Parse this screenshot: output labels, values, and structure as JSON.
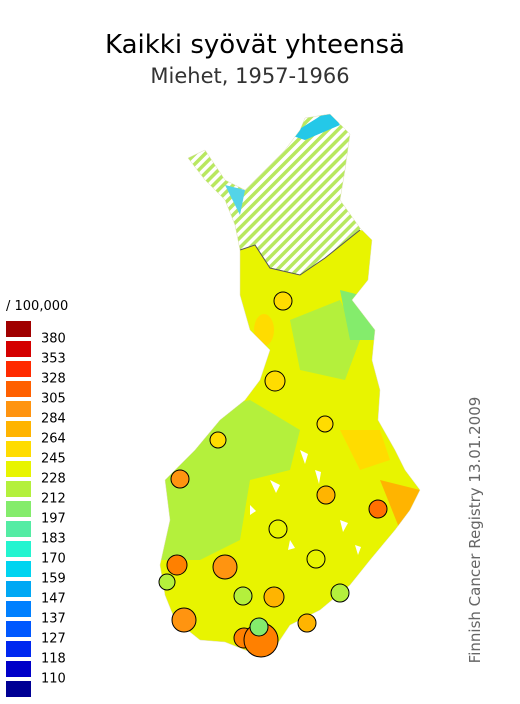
{
  "title": "Kaikki syövät yhteensä",
  "subtitle": "Miehet, 1957-1966",
  "legend": {
    "unit": "/ 100,000",
    "breaks": [
      380,
      353,
      328,
      305,
      284,
      264,
      245,
      228,
      212,
      197,
      183,
      170,
      159,
      147,
      137,
      127,
      118,
      110
    ],
    "colors": [
      "#a00000",
      "#d40000",
      "#ff2a00",
      "#ff6000",
      "#ff9410",
      "#ffb400",
      "#ffdc00",
      "#e8f400",
      "#b4f03c",
      "#84ec6c",
      "#54eca4",
      "#24f4d0",
      "#00d4f0",
      "#00a8f4",
      "#0080ff",
      "#0058ff",
      "#0028f0",
      "#0000c8",
      "#000094"
    ]
  },
  "source": "Finnish Cancer Registry 13.01.2009"
}
